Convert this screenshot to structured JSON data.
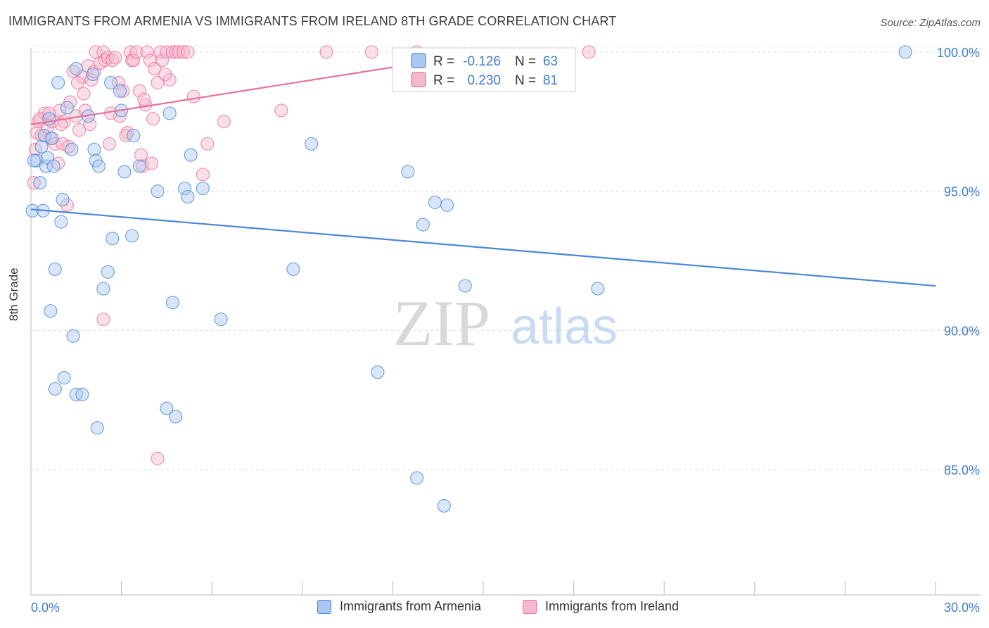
{
  "title": "IMMIGRANTS FROM ARMENIA VS IMMIGRANTS FROM IRELAND 8TH GRADE CORRELATION CHART",
  "source": "Source: ZipAtlas.com",
  "watermark": {
    "zip": "ZIP",
    "atlas": "atlas"
  },
  "colors": {
    "armenia": "#4a86d8",
    "armenia_fill": "#a9c7f0",
    "ireland": "#e8709a",
    "ireland_fill": "#f7b8cd",
    "tick_label": "#3f7bd0"
  },
  "legend_top": {
    "rows": [
      {
        "r_label": "R =",
        "r_value": "-0.126",
        "n_label": "N =",
        "n_value": "63"
      },
      {
        "r_label": "R =",
        "r_value": "0.230",
        "n_label": "N =",
        "n_value": "81"
      }
    ]
  },
  "legend_bottom": [
    "Immigrants from Armenia",
    "Immigrants from Ireland"
  ],
  "chart_data": {
    "type": "scatter",
    "xlabel": "",
    "ylabel": "8th Grade",
    "xlim": [
      0,
      30
    ],
    "ylim": [
      80.5,
      100.3
    ],
    "x_tick_labels": [
      "0.0%",
      "30.0%"
    ],
    "y_ticks": [
      85,
      90,
      95,
      100
    ],
    "y_tick_labels": [
      "85.0%",
      "90.0%",
      "95.0%",
      "100.0%"
    ],
    "grid": "horizontal dashed",
    "series": [
      {
        "name": "Immigrants from Armenia",
        "color": "#4a86d8",
        "trend": {
          "x": [
            0,
            30
          ],
          "y": [
            94.35,
            91.6
          ]
        },
        "points": [
          [
            0.05,
            94.3
          ],
          [
            0.2,
            96.1
          ],
          [
            0.35,
            96.6
          ],
          [
            0.4,
            94.3
          ],
          [
            0.45,
            97.0
          ],
          [
            0.5,
            95.9
          ],
          [
            0.55,
            96.2
          ],
          [
            0.6,
            97.6
          ],
          [
            0.7,
            96.9
          ],
          [
            0.75,
            95.9
          ],
          [
            0.9,
            98.9
          ],
          [
            1.0,
            93.9
          ],
          [
            1.05,
            94.7
          ],
          [
            1.2,
            98.0
          ],
          [
            1.35,
            96.5
          ],
          [
            1.5,
            99.4
          ],
          [
            1.9,
            97.7
          ],
          [
            2.05,
            99.2
          ],
          [
            2.1,
            96.5
          ],
          [
            2.15,
            96.1
          ],
          [
            2.25,
            95.9
          ],
          [
            2.65,
            98.9
          ],
          [
            2.95,
            98.6
          ],
          [
            3.0,
            97.9
          ],
          [
            3.4,
            97.0
          ],
          [
            3.6,
            95.9
          ],
          [
            4.2,
            95.0
          ],
          [
            4.6,
            97.8
          ],
          [
            5.1,
            95.1
          ],
          [
            5.2,
            94.8
          ],
          [
            5.7,
            95.1
          ],
          [
            5.3,
            96.3
          ],
          [
            0.65,
            90.7
          ],
          [
            0.8,
            92.2
          ],
          [
            1.1,
            88.3
          ],
          [
            1.4,
            89.8
          ],
          [
            1.5,
            87.7
          ],
          [
            1.7,
            87.7
          ],
          [
            2.2,
            86.5
          ],
          [
            2.4,
            91.5
          ],
          [
            2.55,
            92.1
          ],
          [
            2.7,
            93.3
          ],
          [
            3.35,
            93.4
          ],
          [
            4.5,
            87.2
          ],
          [
            4.7,
            91.0
          ],
          [
            4.8,
            86.9
          ],
          [
            0.8,
            87.9
          ],
          [
            6.3,
            90.4
          ],
          [
            8.7,
            92.2
          ],
          [
            9.3,
            96.7
          ],
          [
            11.5,
            88.5
          ],
          [
            12.5,
            95.7
          ],
          [
            13.0,
            93.8
          ],
          [
            13.4,
            94.6
          ],
          [
            13.8,
            94.5
          ],
          [
            12.8,
            84.7
          ],
          [
            13.7,
            83.7
          ],
          [
            14.4,
            91.6
          ],
          [
            18.8,
            91.5
          ],
          [
            29.0,
            100.0
          ],
          [
            0.1,
            96.1
          ],
          [
            0.3,
            95.3
          ],
          [
            3.1,
            95.7
          ]
        ]
      },
      {
        "name": "Immigrants from Ireland",
        "color": "#e8709a",
        "trend": {
          "x": [
            0,
            14.6
          ],
          "y": [
            97.4,
            99.9
          ]
        },
        "points": [
          [
            0.1,
            95.3
          ],
          [
            0.15,
            96.5
          ],
          [
            0.2,
            97.1
          ],
          [
            0.25,
            97.5
          ],
          [
            0.35,
            97.0
          ],
          [
            0.45,
            97.8
          ],
          [
            0.55,
            97.3
          ],
          [
            0.65,
            96.9
          ],
          [
            0.7,
            97.5
          ],
          [
            0.8,
            96.7
          ],
          [
            0.9,
            96.0
          ],
          [
            0.95,
            97.9
          ],
          [
            1.05,
            96.7
          ],
          [
            1.1,
            97.5
          ],
          [
            1.25,
            96.6
          ],
          [
            1.3,
            98.2
          ],
          [
            1.4,
            99.3
          ],
          [
            1.5,
            97.7
          ],
          [
            1.6,
            97.2
          ],
          [
            1.7,
            99.1
          ],
          [
            1.8,
            97.9
          ],
          [
            1.9,
            99.5
          ],
          [
            1.95,
            97.4
          ],
          [
            2.0,
            99.0
          ],
          [
            2.1,
            99.3
          ],
          [
            2.15,
            100.0
          ],
          [
            2.3,
            99.6
          ],
          [
            2.4,
            100.0
          ],
          [
            2.45,
            99.7
          ],
          [
            2.55,
            99.8
          ],
          [
            2.6,
            96.7
          ],
          [
            2.7,
            99.7
          ],
          [
            2.8,
            99.8
          ],
          [
            2.9,
            98.9
          ],
          [
            2.95,
            97.7
          ],
          [
            3.05,
            98.6
          ],
          [
            3.2,
            97.1
          ],
          [
            3.3,
            100.0
          ],
          [
            3.35,
            99.7
          ],
          [
            3.4,
            99.7
          ],
          [
            3.5,
            100.0
          ],
          [
            3.6,
            98.6
          ],
          [
            3.65,
            96.3
          ],
          [
            3.7,
            95.9
          ],
          [
            3.8,
            98.1
          ],
          [
            3.85,
            100.0
          ],
          [
            3.95,
            99.7
          ],
          [
            4.0,
            96.0
          ],
          [
            4.1,
            99.4
          ],
          [
            4.2,
            98.9
          ],
          [
            4.3,
            100.0
          ],
          [
            4.35,
            99.7
          ],
          [
            4.5,
            100.0
          ],
          [
            4.6,
            99.0
          ],
          [
            4.7,
            100.0
          ],
          [
            4.8,
            100.0
          ],
          [
            4.9,
            100.0
          ],
          [
            5.05,
            100.0
          ],
          [
            5.2,
            100.0
          ],
          [
            5.4,
            98.4
          ],
          [
            5.7,
            95.6
          ],
          [
            5.85,
            96.7
          ],
          [
            6.4,
            97.5
          ],
          [
            8.3,
            97.9
          ],
          [
            9.8,
            100.0
          ],
          [
            11.3,
            100.0
          ],
          [
            12.8,
            100.0
          ],
          [
            18.5,
            100.0
          ],
          [
            0.3,
            97.6
          ],
          [
            1.2,
            94.5
          ],
          [
            2.4,
            90.4
          ],
          [
            4.2,
            85.4
          ],
          [
            0.6,
            97.8
          ],
          [
            1.0,
            97.4
          ],
          [
            1.55,
            98.9
          ],
          [
            1.75,
            98.5
          ],
          [
            2.65,
            97.8
          ],
          [
            3.15,
            97.0
          ],
          [
            3.75,
            98.3
          ],
          [
            4.05,
            97.6
          ],
          [
            4.45,
            99.2
          ]
        ]
      }
    ]
  }
}
